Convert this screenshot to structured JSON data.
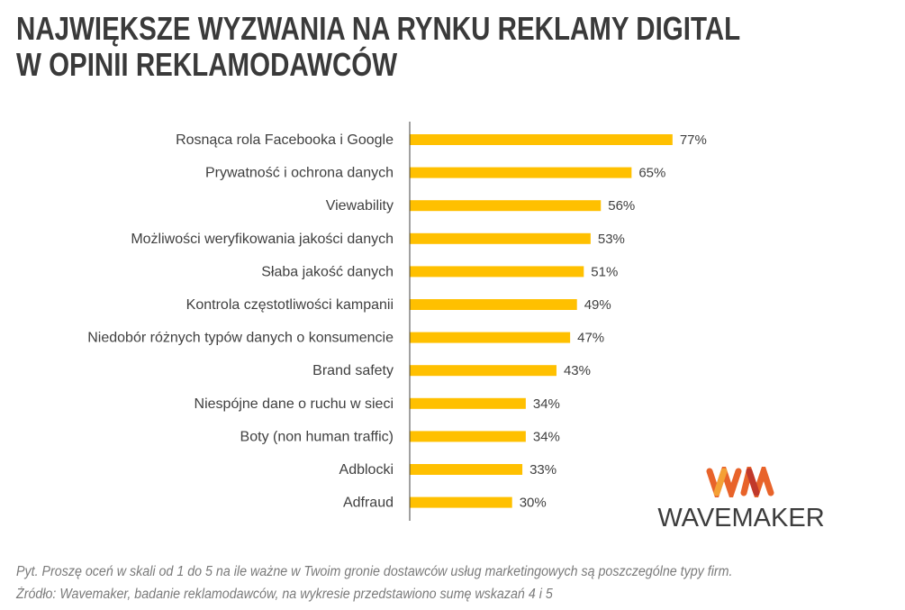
{
  "title_line1": "NAJWIĘKSZE WYZWANIA NA RYNKU REKLAMY DIGITAL",
  "title_line2": "W OPINII REKLAMODAWCÓW",
  "logo": {
    "mark": "WM",
    "word": "WAVEMAKER"
  },
  "footnote": {
    "question": "Pyt. Proszę oceń w skali od 1 do 5 na ile ważne w Twoim gronie dostawców usług marketingowych są poszczególne typy firm.",
    "source": "Źródło: Wavemaker, badanie reklamodawców, na wykresie przedstawiono sumę wskazań 4 i 5"
  },
  "colors": {
    "bar": "#FFC000",
    "axis": "#404040",
    "text": "#404040"
  },
  "chart_data": {
    "type": "bar",
    "orientation": "horizontal",
    "title": "NAJWIĘKSZE WYZWANIA NA RYNKU REKLAMY DIGITAL W OPINII REKLAMODAWCÓW",
    "xlabel": "",
    "ylabel": "",
    "unit": "%",
    "xlim": [
      0,
      100
    ],
    "grid": false,
    "categories": [
      "Rosnąca rola Facebooka i Google",
      "Prywatność i ochrona danych",
      "Viewability",
      "Możliwości weryfikowania jakości danych",
      "Słaba jakość danych",
      "Kontrola częstotliwości kampanii",
      "Niedobór różnych typów danych o konsumencie",
      "Brand safety",
      "Niespójne dane o ruchu w sieci",
      "Boty (non human traffic)",
      "Adblocki",
      "Adfraud"
    ],
    "values": [
      77,
      65,
      56,
      53,
      51,
      49,
      47,
      43,
      34,
      34,
      33,
      30
    ],
    "labels": [
      "77%",
      "65%",
      "56%",
      "53%",
      "51%",
      "49%",
      "47%",
      "43%",
      "34%",
      "34%",
      "33%",
      "30%"
    ]
  }
}
